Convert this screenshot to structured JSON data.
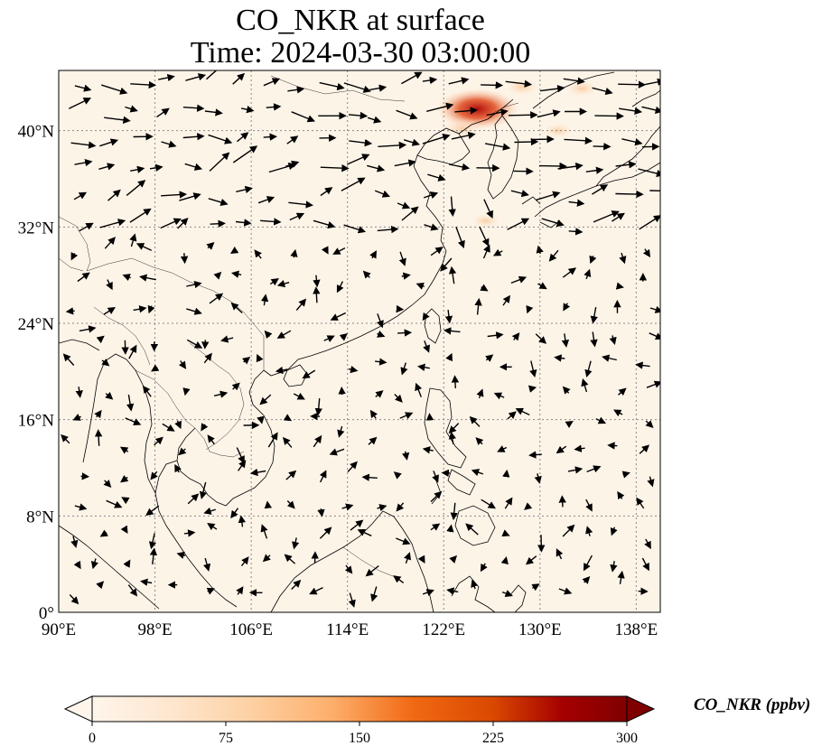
{
  "title": {
    "line1": "CO_NKR at surface",
    "line2": "Time: 2024-03-30 03:00:00"
  },
  "map": {
    "variable": "CO_NKR",
    "extent": {
      "lon_min": 90,
      "lon_max": 140,
      "lat_min": 0,
      "lat_max": 45
    },
    "background_color": "#fdf4e8",
    "coastline_color": "#000000",
    "gridline_color": "#888888",
    "lon_ticks": [
      {
        "value": 90,
        "label": "90°E"
      },
      {
        "value": 98,
        "label": "98°E"
      },
      {
        "value": 106,
        "label": "106°E"
      },
      {
        "value": 114,
        "label": "114°E"
      },
      {
        "value": 122,
        "label": "122°E"
      },
      {
        "value": 130,
        "label": "130°E"
      },
      {
        "value": 138,
        "label": "138°E"
      }
    ],
    "lat_ticks": [
      {
        "value": 0,
        "label": "0°"
      },
      {
        "value": 8,
        "label": "8°N"
      },
      {
        "value": 16,
        "label": "16°N"
      },
      {
        "value": 24,
        "label": "24°N"
      },
      {
        "value": 32,
        "label": "32°N"
      },
      {
        "value": 40,
        "label": "40°N"
      }
    ],
    "plume_hotspots": [
      {
        "lon": 124.8,
        "lat": 41.8,
        "value_ppbv": 260
      },
      {
        "lon": 123.5,
        "lat": 40.2,
        "value_ppbv": 70
      },
      {
        "lon": 128.5,
        "lat": 43.6,
        "value_ppbv": 45
      },
      {
        "lon": 133.5,
        "lat": 43.5,
        "value_ppbv": 40
      },
      {
        "lon": 131.5,
        "lat": 40.0,
        "value_ppbv": 25
      },
      {
        "lon": 125.5,
        "lat": 32.5,
        "value_ppbv": 20
      }
    ]
  },
  "colorbar": {
    "label": "CO_NKR (ppbv)",
    "min": 0,
    "max": 300,
    "ticks": [
      {
        "value": 0,
        "label": "0"
      },
      {
        "value": 75,
        "label": "75"
      },
      {
        "value": 150,
        "label": "150"
      },
      {
        "value": 225,
        "label": "225"
      },
      {
        "value": 300,
        "label": "300"
      }
    ],
    "colors": [
      "#fff5eb",
      "#fee6ce",
      "#fdd0a2",
      "#fdae6b",
      "#f16913",
      "#d94801",
      "#a50000",
      "#7f0000"
    ],
    "extend": "both"
  }
}
